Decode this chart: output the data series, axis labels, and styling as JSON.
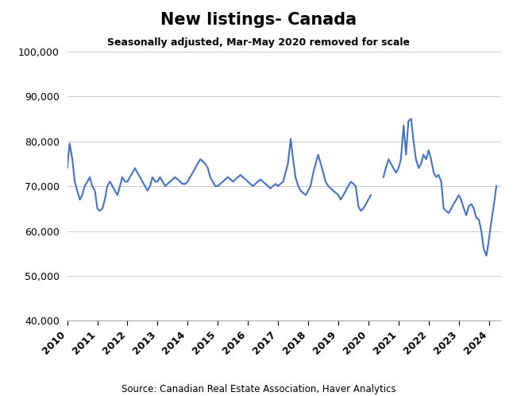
{
  "title": "New listings- Canada",
  "subtitle": "Seasonally adjusted, Mar-May 2020 removed for scale",
  "source": "Source: Canadian Real Estate Association, Haver Analytics",
  "line_color": "#4472C4",
  "background_color": "#ffffff",
  "ylim": [
    40000,
    100000
  ],
  "yticks": [
    40000,
    50000,
    60000,
    70000,
    80000,
    90000,
    100000
  ],
  "xlim_start": 2010.0,
  "xlim_end": 2024.42,
  "xticks": [
    2010,
    2011,
    2012,
    2013,
    2014,
    2015,
    2016,
    2017,
    2018,
    2019,
    2020,
    2021,
    2022,
    2023,
    2024
  ],
  "dates": [
    2010.0,
    2010.08,
    2010.17,
    2010.25,
    2010.33,
    2010.42,
    2010.5,
    2010.58,
    2010.67,
    2010.75,
    2010.83,
    2010.92,
    2011.0,
    2011.08,
    2011.17,
    2011.25,
    2011.33,
    2011.42,
    2011.5,
    2011.58,
    2011.67,
    2011.75,
    2011.83,
    2011.92,
    2012.0,
    2012.08,
    2012.17,
    2012.25,
    2012.33,
    2012.42,
    2012.5,
    2012.58,
    2012.67,
    2012.75,
    2012.83,
    2012.92,
    2013.0,
    2013.08,
    2013.17,
    2013.25,
    2013.33,
    2013.42,
    2013.5,
    2013.58,
    2013.67,
    2013.75,
    2013.83,
    2013.92,
    2014.0,
    2014.08,
    2014.17,
    2014.25,
    2014.33,
    2014.42,
    2014.5,
    2014.58,
    2014.67,
    2014.75,
    2014.83,
    2014.92,
    2015.0,
    2015.08,
    2015.17,
    2015.25,
    2015.33,
    2015.42,
    2015.5,
    2015.58,
    2015.67,
    2015.75,
    2015.83,
    2015.92,
    2016.0,
    2016.08,
    2016.17,
    2016.25,
    2016.33,
    2016.42,
    2016.5,
    2016.58,
    2016.67,
    2016.75,
    2016.83,
    2016.92,
    2017.0,
    2017.08,
    2017.17,
    2017.25,
    2017.33,
    2017.42,
    2017.5,
    2017.58,
    2017.67,
    2017.75,
    2017.83,
    2017.92,
    2018.0,
    2018.08,
    2018.17,
    2018.25,
    2018.33,
    2018.42,
    2018.5,
    2018.58,
    2018.67,
    2018.75,
    2018.83,
    2018.92,
    2019.0,
    2019.08,
    2019.17,
    2019.25,
    2019.33,
    2019.42,
    2019.5,
    2019.58,
    2019.67,
    2019.75,
    2019.83,
    2019.92,
    2020.0,
    2020.08,
    2020.5,
    2020.58,
    2020.67,
    2020.75,
    2020.83,
    2020.92,
    2021.0,
    2021.08,
    2021.17,
    2021.25,
    2021.33,
    2021.42,
    2021.5,
    2021.58,
    2021.67,
    2021.75,
    2021.83,
    2021.92,
    2022.0,
    2022.08,
    2022.17,
    2022.25,
    2022.33,
    2022.42,
    2022.5,
    2022.58,
    2022.67,
    2022.75,
    2022.83,
    2022.92,
    2023.0,
    2023.08,
    2023.17,
    2023.25,
    2023.33,
    2023.42,
    2023.5,
    2023.58,
    2023.67,
    2023.75,
    2023.83,
    2023.92,
    2024.0,
    2024.08,
    2024.17,
    2024.25
  ],
  "values": [
    74000,
    79500,
    76000,
    71000,
    69000,
    67000,
    68000,
    70000,
    71000,
    72000,
    70000,
    69000,
    65000,
    64500,
    65000,
    67000,
    70000,
    71000,
    70000,
    69000,
    68000,
    70000,
    72000,
    71000,
    71000,
    72000,
    73000,
    74000,
    73000,
    72000,
    71000,
    70000,
    69000,
    70000,
    72000,
    71000,
    71000,
    72000,
    71000,
    70000,
    70500,
    71000,
    71500,
    72000,
    71500,
    71000,
    70500,
    70500,
    71000,
    72000,
    73000,
    74000,
    75000,
    76000,
    75500,
    75000,
    74000,
    72000,
    71000,
    70000,
    70000,
    70500,
    71000,
    71500,
    72000,
    71500,
    71000,
    71500,
    72000,
    72500,
    72000,
    71500,
    71000,
    70500,
    70000,
    70500,
    71000,
    71500,
    71000,
    70500,
    70000,
    69500,
    70000,
    70500,
    70000,
    70500,
    71000,
    73000,
    75000,
    80500,
    76000,
    72000,
    70000,
    69000,
    68500,
    68000,
    69000,
    70000,
    73000,
    75000,
    77000,
    75000,
    73000,
    71000,
    70000,
    69500,
    69000,
    68500,
    68000,
    67000,
    68000,
    69000,
    70000,
    71000,
    70500,
    70000,
    65500,
    64500,
    65000,
    66000,
    67000,
    68000,
    72000,
    74000,
    76000,
    75000,
    74000,
    73000,
    74000,
    76000,
    83500,
    77000,
    84500,
    85000,
    80000,
    76000,
    74000,
    75000,
    77000,
    76000,
    78000,
    76000,
    73000,
    72000,
    72500,
    71000,
    65000,
    64500,
    64000,
    65000,
    66000,
    67000,
    68000,
    67000,
    65000,
    63500,
    65500,
    66000,
    65000,
    63000,
    62500,
    60000,
    56000,
    54500,
    58000,
    62000,
    66000,
    70000
  ],
  "line_width": 1.5
}
